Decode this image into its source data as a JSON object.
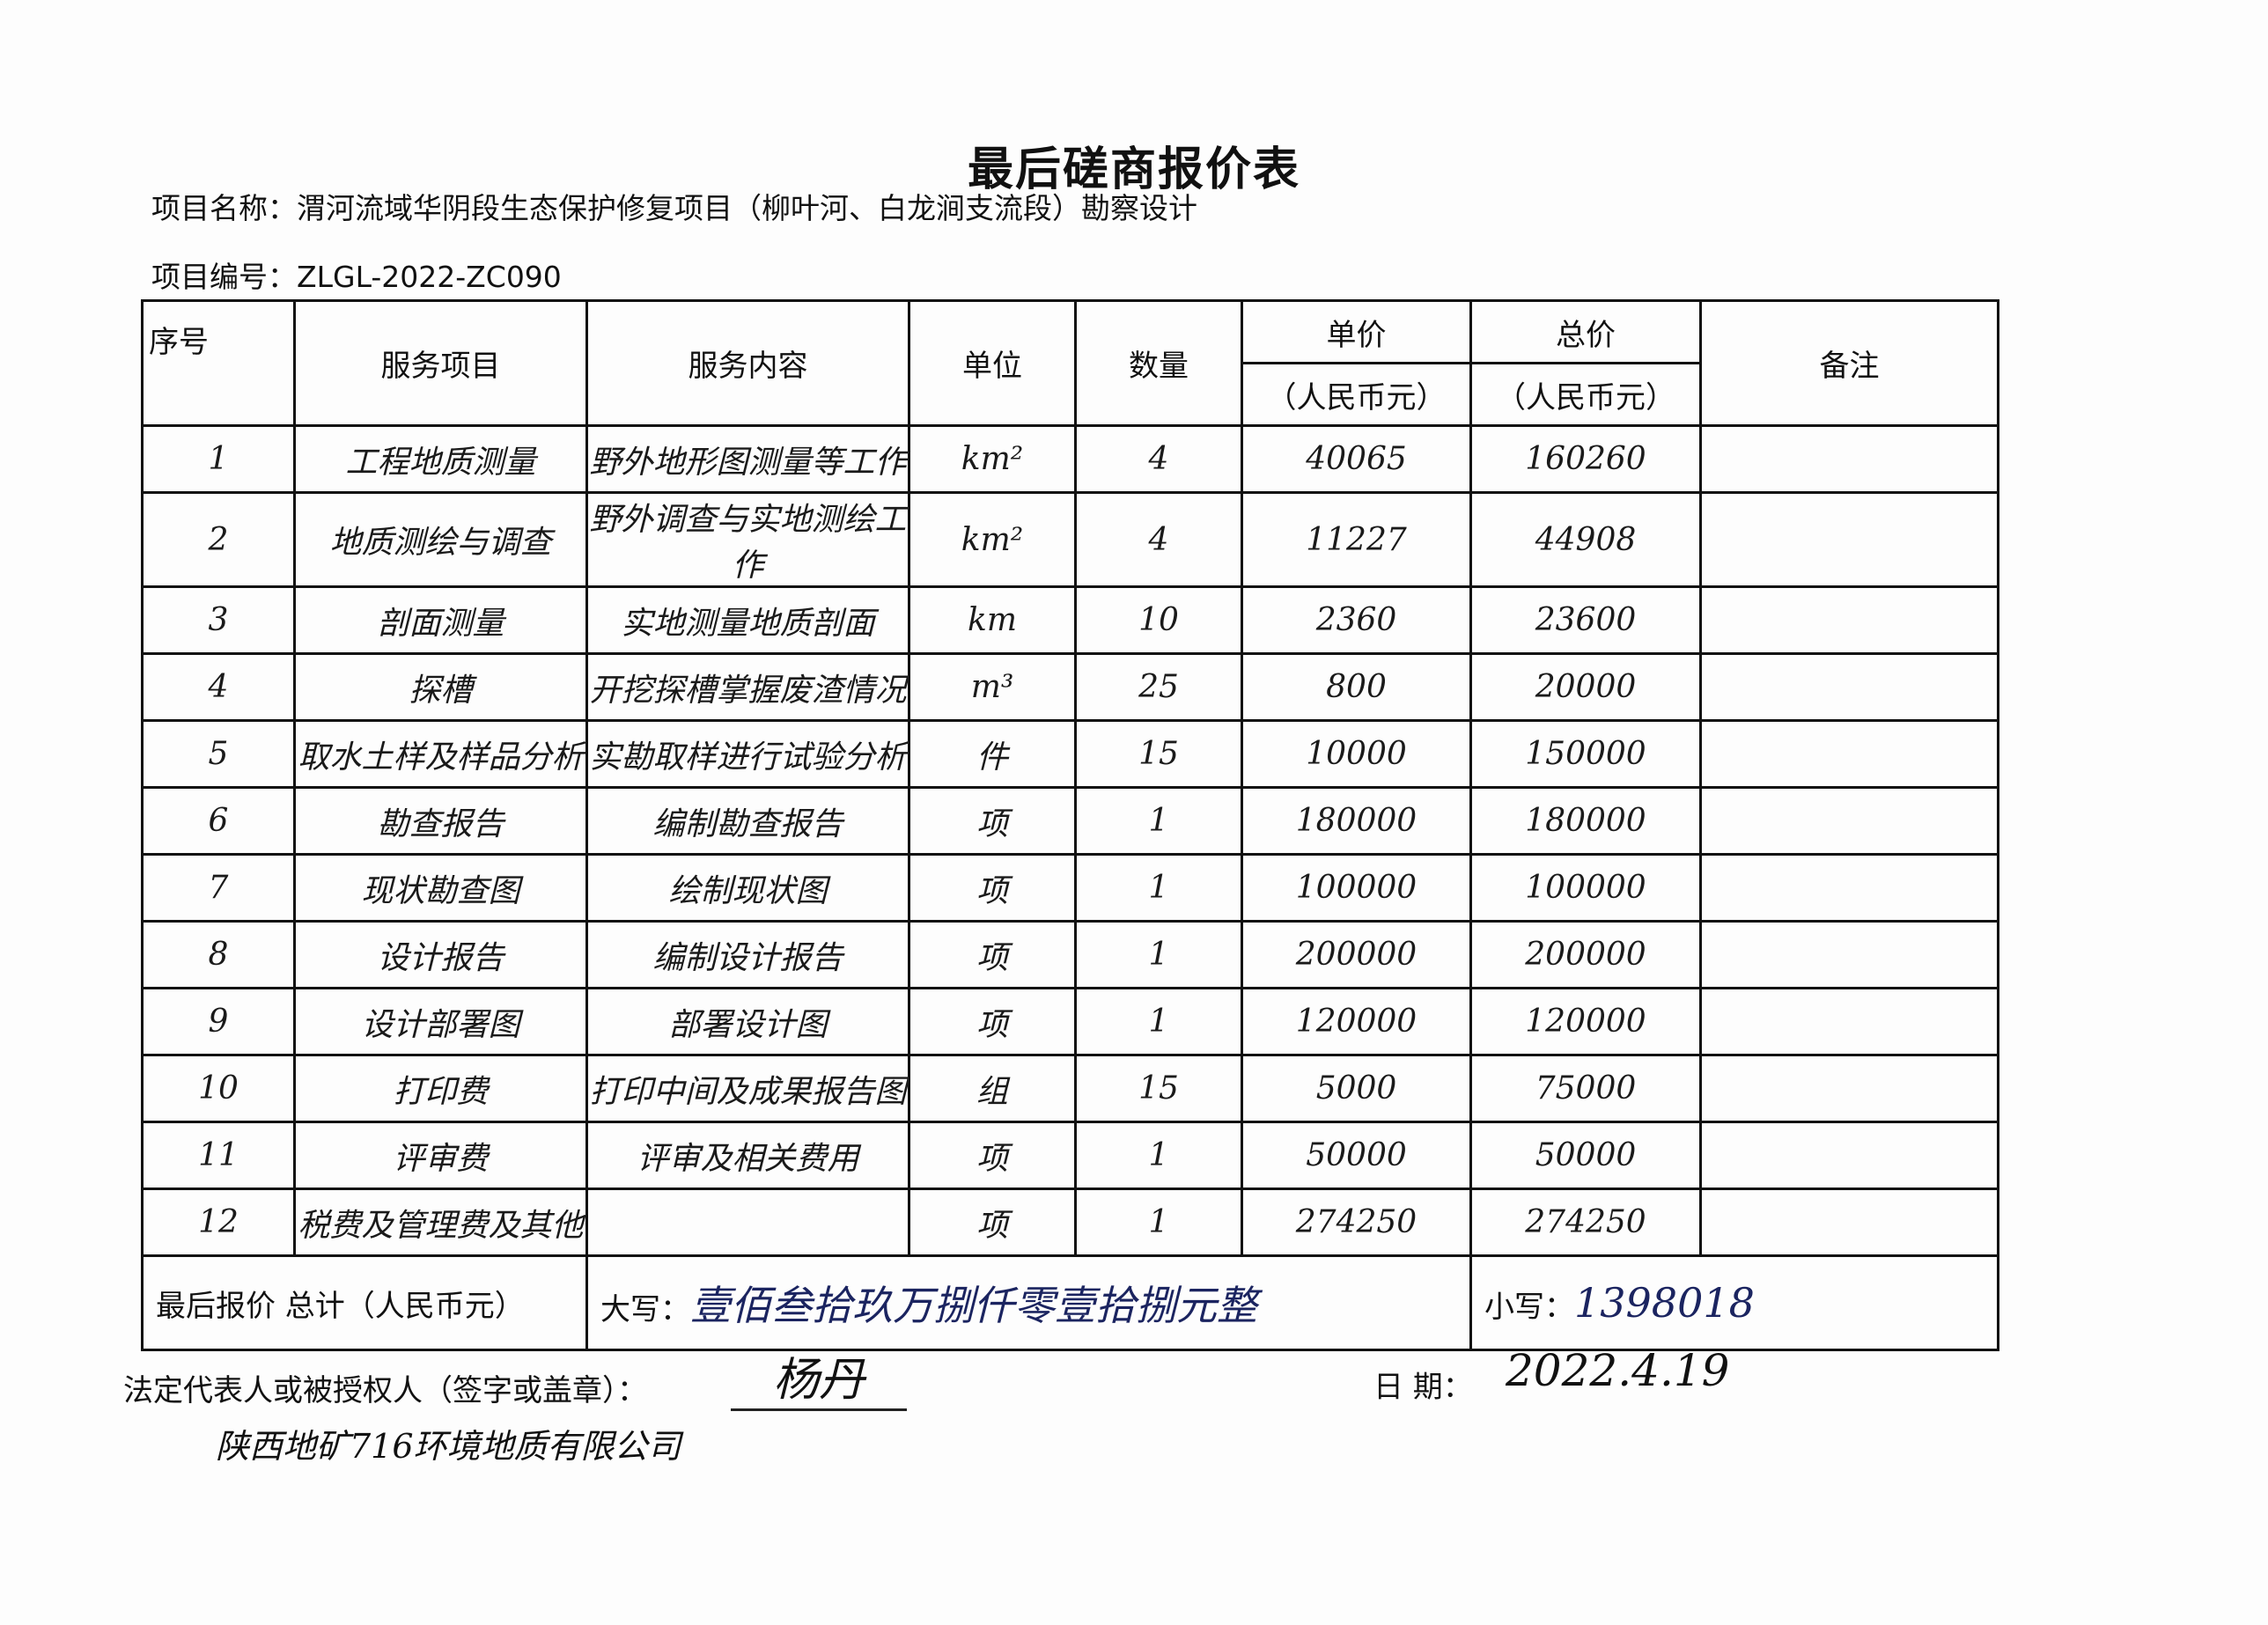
{
  "title": "最后磋商报价表",
  "project_name": "项目名称：渭河流域华阴段生态保护修复项目（柳叶河、白龙涧支流段）勘察设计",
  "project_no": "项目编号：ZLGL-2022-ZC090",
  "headers": {
    "seq": "序号",
    "item": "服务项目",
    "content": "服务内容",
    "unit": "单位",
    "qty": "数量",
    "unit_price": "单价",
    "unit_price_sub": "（人民币元）",
    "total_price": "总价",
    "total_price_sub": "（人民币元）",
    "remark": "备注"
  },
  "rows": [
    {
      "seq": "1",
      "item": "工程地质测量",
      "content": "野外地形图测量等工作",
      "unit": "km²",
      "qty": "4",
      "unit_price": "40065",
      "total": "160260",
      "remark": ""
    },
    {
      "seq": "2",
      "item": "地质测绘与调查",
      "content": "野外调查与实地测绘工作",
      "unit": "km²",
      "qty": "4",
      "unit_price": "11227",
      "total": "44908",
      "remark": ""
    },
    {
      "seq": "3",
      "item": "剖面测量",
      "content": "实地测量地质剖面",
      "unit": "km",
      "qty": "10",
      "unit_price": "2360",
      "total": "23600",
      "remark": ""
    },
    {
      "seq": "4",
      "item": "探槽",
      "content": "开挖探槽掌握废渣情况",
      "unit": "m³",
      "qty": "25",
      "unit_price": "800",
      "total": "20000",
      "remark": ""
    },
    {
      "seq": "5",
      "item": "取水土样及样品分析",
      "content": "实勘取样进行试验分析",
      "unit": "件",
      "qty": "15",
      "unit_price": "10000",
      "total": "150000",
      "remark": ""
    },
    {
      "seq": "6",
      "item": "勘查报告",
      "content": "编制勘查报告",
      "unit": "项",
      "qty": "1",
      "unit_price": "180000",
      "total": "180000",
      "remark": ""
    },
    {
      "seq": "7",
      "item": "现状勘查图",
      "content": "绘制现状图",
      "unit": "项",
      "qty": "1",
      "unit_price": "100000",
      "total": "100000",
      "remark": ""
    },
    {
      "seq": "8",
      "item": "设计报告",
      "content": "编制设计报告",
      "unit": "项",
      "qty": "1",
      "unit_price": "200000",
      "total": "200000",
      "remark": ""
    },
    {
      "seq": "9",
      "item": "设计部署图",
      "content": "部署设计图",
      "unit": "项",
      "qty": "1",
      "unit_price": "120000",
      "total": "120000",
      "remark": ""
    },
    {
      "seq": "10",
      "item": "打印费",
      "content": "打印中间及成果报告图",
      "unit": "组",
      "qty": "15",
      "unit_price": "5000",
      "total": "75000",
      "remark": ""
    },
    {
      "seq": "11",
      "item": "评审费",
      "content": "评审及相关费用",
      "unit": "项",
      "qty": "1",
      "unit_price": "50000",
      "total": "50000",
      "remark": ""
    },
    {
      "seq": "12",
      "item": "税费及管理费及其他",
      "content": "",
      "unit": "项",
      "qty": "1",
      "unit_price": "274250",
      "total": "274250",
      "remark": ""
    }
  ],
  "total": {
    "label": "最后报价 总计（人民币元）",
    "upper_label": "大写：",
    "upper_value": "壹佰叁拾玖万捌仟零壹拾捌元整",
    "lower_label": "小写：",
    "lower_value": "1398018"
  },
  "footer": {
    "legal_label": "法定代表人或被授权人（签字或盖章）：",
    "signature": "杨丹",
    "company": "陕西地矿716环境地质有限公司",
    "date_label": "日 期：",
    "date_value": "2022.4.19"
  },
  "colors": {
    "ink": "#111111",
    "handwriting": "#1b2460"
  }
}
